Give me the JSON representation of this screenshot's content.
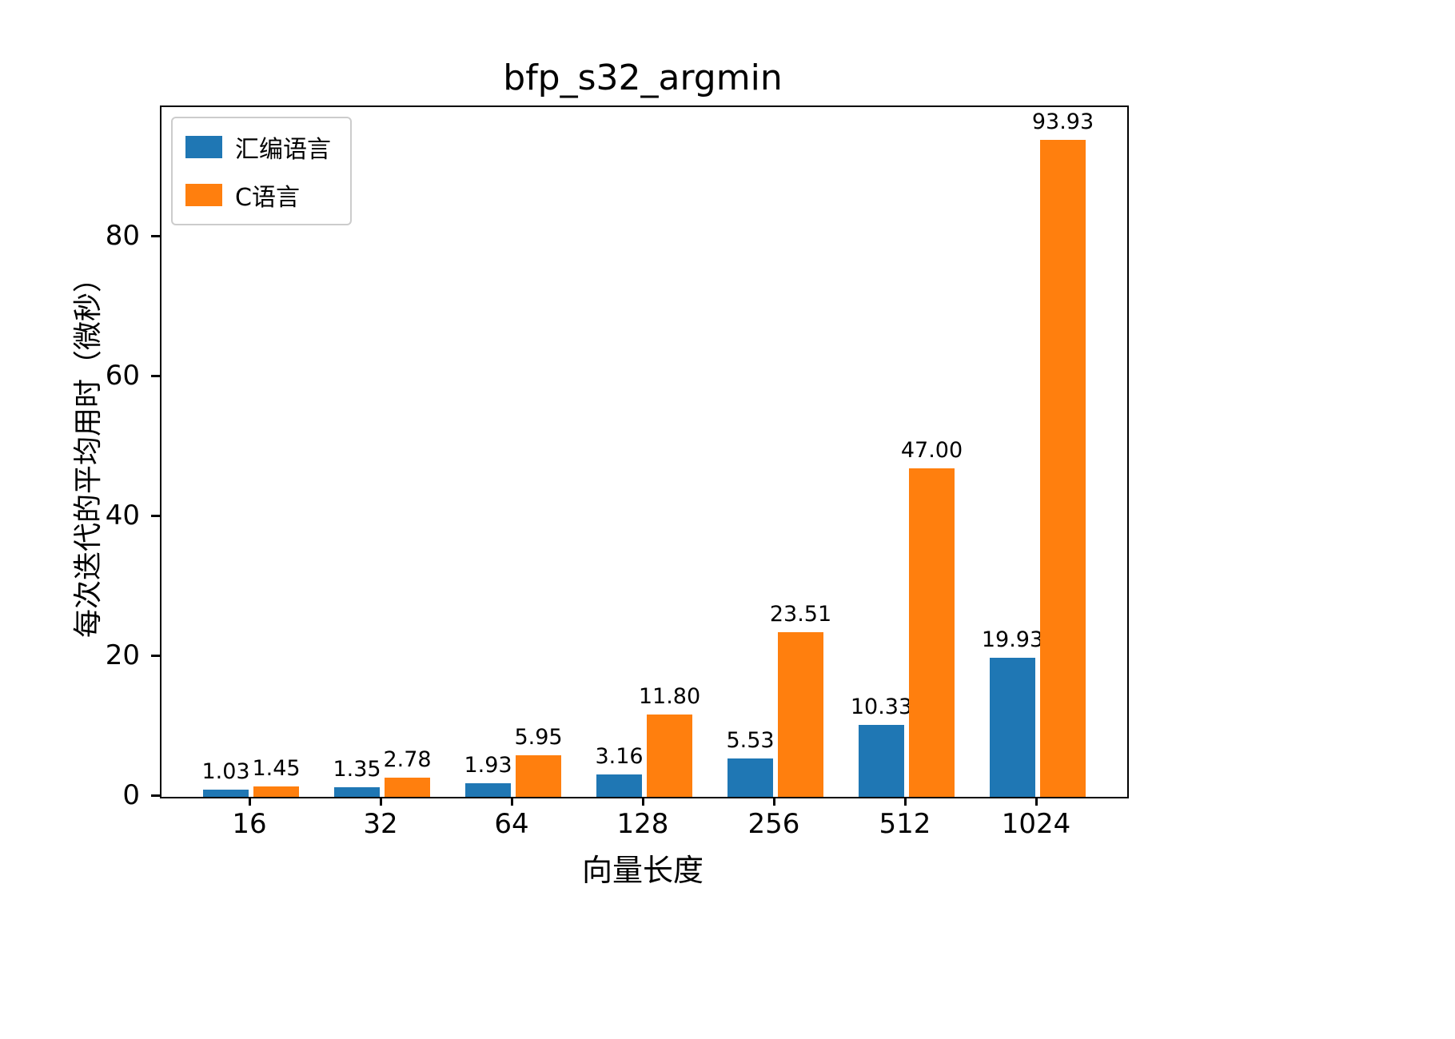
{
  "chart_data": {
    "type": "bar",
    "title": "bfp_s32_argmin",
    "xlabel": "向量长度",
    "ylabel": "每次迭代的平均用时（微秒）",
    "categories": [
      "16",
      "32",
      "64",
      "128",
      "256",
      "512",
      "1024"
    ],
    "series": [
      {
        "name": "汇编语言",
        "color": "#1f77b4",
        "values": [
          1.03,
          1.35,
          1.93,
          3.16,
          5.53,
          10.33,
          19.93
        ],
        "labels": [
          "1.03",
          "1.35",
          "1.93",
          "3.16",
          "5.53",
          "10.33",
          "19.93"
        ]
      },
      {
        "name": "C语言",
        "color": "#ff7f0e",
        "values": [
          1.45,
          2.78,
          5.95,
          11.8,
          23.51,
          47.0,
          93.93
        ],
        "labels": [
          "1.45",
          "2.78",
          "5.95",
          "11.80",
          "23.51",
          "47.00",
          "93.93"
        ]
      }
    ],
    "ylim": [
      0,
      98.6
    ],
    "yticks": [
      0,
      20,
      40,
      60,
      80
    ],
    "legend_position": "upper left",
    "grid": false,
    "axis_color": "#000000",
    "background_color": "#ffffff"
  }
}
